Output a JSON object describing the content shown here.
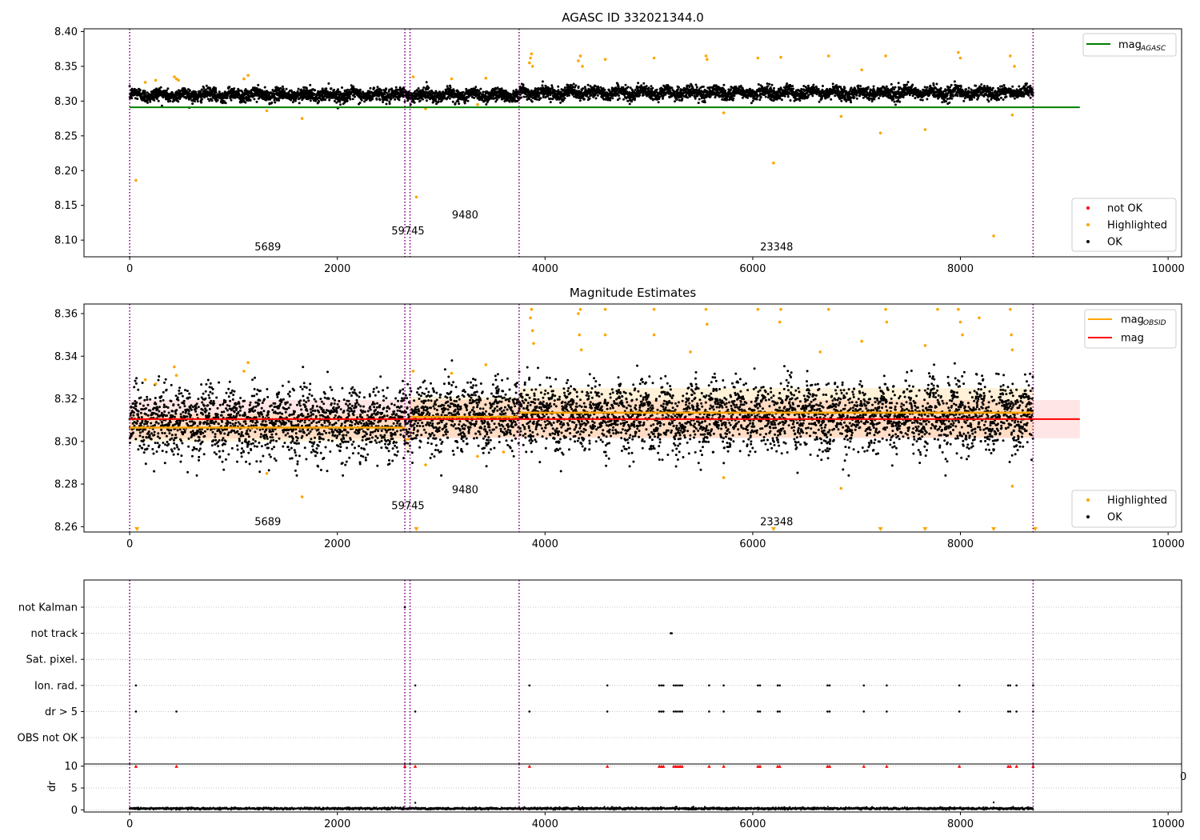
{
  "chart_data": [
    {
      "id": "agasc",
      "type": "scatter",
      "title": "AGASC ID 332021344.0",
      "xlim": [
        -440,
        10130
      ],
      "ylim": [
        8.076,
        8.404
      ],
      "xticks": [
        0,
        2000,
        4000,
        6000,
        8000,
        10000
      ],
      "yticks": [
        8.1,
        8.15,
        8.2,
        8.25,
        8.3,
        8.35,
        8.4
      ],
      "yticks_label": [
        "8.10",
        "8.15",
        "8.20",
        "8.25",
        "8.30",
        "8.35",
        "8.40"
      ],
      "obs_lines": [
        0,
        2650,
        2700,
        3750,
        8700
      ],
      "reference_line": {
        "name": "mag",
        "subscript": "AGASC",
        "y": 8.291,
        "x": [
          0,
          9150
        ],
        "color": "#008000"
      },
      "ok_band": {
        "center": 8.309,
        "amplitude": 0.008,
        "x_segments": [
          [
            0,
            3750
          ],
          [
            3750,
            8700
          ]
        ]
      },
      "highlighted_points": [
        {
          "x": 60,
          "y": 8.186
        },
        {
          "x": 150,
          "y": 8.327
        },
        {
          "x": 250,
          "y": 8.33
        },
        {
          "x": 430,
          "y": 8.335
        },
        {
          "x": 450,
          "y": 8.332
        },
        {
          "x": 470,
          "y": 8.33
        },
        {
          "x": 1100,
          "y": 8.332
        },
        {
          "x": 1140,
          "y": 8.337
        },
        {
          "x": 1320,
          "y": 8.286
        },
        {
          "x": 1660,
          "y": 8.275
        },
        {
          "x": 2730,
          "y": 8.335
        },
        {
          "x": 2760,
          "y": 8.162
        },
        {
          "x": 2850,
          "y": 8.289
        },
        {
          "x": 3100,
          "y": 8.332
        },
        {
          "x": 3350,
          "y": 8.295
        },
        {
          "x": 3430,
          "y": 8.333
        },
        {
          "x": 3850,
          "y": 8.355
        },
        {
          "x": 3860,
          "y": 8.362
        },
        {
          "x": 3870,
          "y": 8.368
        },
        {
          "x": 3880,
          "y": 8.35
        },
        {
          "x": 4320,
          "y": 8.358
        },
        {
          "x": 4340,
          "y": 8.365
        },
        {
          "x": 4360,
          "y": 8.35
        },
        {
          "x": 4580,
          "y": 8.36
        },
        {
          "x": 5050,
          "y": 8.362
        },
        {
          "x": 5550,
          "y": 8.365
        },
        {
          "x": 5560,
          "y": 8.36
        },
        {
          "x": 5720,
          "y": 8.283
        },
        {
          "x": 6050,
          "y": 8.362
        },
        {
          "x": 6200,
          "y": 8.211
        },
        {
          "x": 6270,
          "y": 8.363
        },
        {
          "x": 6730,
          "y": 8.365
        },
        {
          "x": 6850,
          "y": 8.278
        },
        {
          "x": 7050,
          "y": 8.345
        },
        {
          "x": 7230,
          "y": 8.254
        },
        {
          "x": 7280,
          "y": 8.365
        },
        {
          "x": 7660,
          "y": 8.259
        },
        {
          "x": 7980,
          "y": 8.37
        },
        {
          "x": 8000,
          "y": 8.362
        },
        {
          "x": 8320,
          "y": 8.106
        },
        {
          "x": 8480,
          "y": 8.365
        },
        {
          "x": 8500,
          "y": 8.28
        },
        {
          "x": 8520,
          "y": 8.35
        }
      ],
      "annotations": [
        {
          "text": "5689",
          "x": 1330,
          "y": 8.091
        },
        {
          "text": "59745",
          "x": 2680,
          "y": 8.114
        },
        {
          "text": "9480",
          "x": 3230,
          "y": 8.137
        },
        {
          "text": "23348",
          "x": 6230,
          "y": 8.091
        }
      ],
      "legend_lines": [
        {
          "label": "mag",
          "subscript": "AGASC",
          "color": "#008000"
        }
      ],
      "legend_points": [
        {
          "label": "not OK",
          "color": "#ff0000"
        },
        {
          "label": "Highlighted",
          "color": "#ffa500"
        },
        {
          "label": "OK",
          "color": "#000000"
        }
      ]
    },
    {
      "id": "estimates",
      "type": "scatter",
      "title": "Magnitude Estimates",
      "xlim": [
        -440,
        10130
      ],
      "ylim": [
        8.2575,
        8.3645
      ],
      "xticks": [
        0,
        2000,
        4000,
        6000,
        8000,
        10000
      ],
      "yticks": [
        8.26,
        8.28,
        8.3,
        8.32,
        8.34,
        8.36
      ],
      "yticks_label": [
        "8.26",
        "8.28",
        "8.30",
        "8.32",
        "8.34",
        "8.36"
      ],
      "obs_lines": [
        0,
        2650,
        2700,
        3750,
        8700
      ],
      "mag_line": {
        "name": "mag",
        "y": 8.3105,
        "band": [
          8.3015,
          8.3195
        ],
        "x": [
          0,
          9150
        ],
        "color": "#ff0000"
      },
      "obsid_segments": [
        {
          "x": [
            0,
            2650
          ],
          "y": 8.3065,
          "band": [
            8.3,
            8.313
          ]
        },
        {
          "x": [
            2650,
            2700
          ],
          "y": 8.301,
          "band": [
            8.295,
            8.307
          ]
        },
        {
          "x": [
            2700,
            3750
          ],
          "y": 8.3115,
          "band": [
            8.302,
            8.321
          ]
        },
        {
          "x": [
            3750,
            8700
          ],
          "y": 8.3135,
          "band": [
            8.302,
            8.325
          ]
        }
      ],
      "ok_band": {
        "center": 8.309,
        "amplitude": 0.011,
        "x_segments": [
          [
            0,
            2700
          ],
          [
            2700,
            8700
          ]
        ]
      },
      "highlighted_points": [
        {
          "x": 150,
          "y": 8.329
        },
        {
          "x": 250,
          "y": 8.327
        },
        {
          "x": 430,
          "y": 8.335
        },
        {
          "x": 450,
          "y": 8.331
        },
        {
          "x": 1100,
          "y": 8.333
        },
        {
          "x": 1140,
          "y": 8.337
        },
        {
          "x": 1320,
          "y": 8.285
        },
        {
          "x": 1660,
          "y": 8.274
        },
        {
          "x": 2730,
          "y": 8.333
        },
        {
          "x": 2850,
          "y": 8.289
        },
        {
          "x": 3100,
          "y": 8.332
        },
        {
          "x": 3350,
          "y": 8.293
        },
        {
          "x": 3430,
          "y": 8.336
        },
        {
          "x": 3600,
          "y": 8.295
        },
        {
          "x": 3860,
          "y": 8.358
        },
        {
          "x": 3870,
          "y": 8.362
        },
        {
          "x": 3880,
          "y": 8.352
        },
        {
          "x": 3890,
          "y": 8.346
        },
        {
          "x": 4320,
          "y": 8.36
        },
        {
          "x": 4340,
          "y": 8.362
        },
        {
          "x": 4330,
          "y": 8.35
        },
        {
          "x": 4350,
          "y": 8.343
        },
        {
          "x": 4580,
          "y": 8.362
        },
        {
          "x": 4580,
          "y": 8.35
        },
        {
          "x": 5050,
          "y": 8.362
        },
        {
          "x": 5050,
          "y": 8.35
        },
        {
          "x": 5400,
          "y": 8.342
        },
        {
          "x": 5550,
          "y": 8.362
        },
        {
          "x": 5560,
          "y": 8.355
        },
        {
          "x": 5720,
          "y": 8.283
        },
        {
          "x": 6050,
          "y": 8.362
        },
        {
          "x": 6270,
          "y": 8.362
        },
        {
          "x": 6260,
          "y": 8.356
        },
        {
          "x": 6650,
          "y": 8.342
        },
        {
          "x": 6730,
          "y": 8.362
        },
        {
          "x": 6850,
          "y": 8.278
        },
        {
          "x": 7050,
          "y": 8.347
        },
        {
          "x": 7280,
          "y": 8.362
        },
        {
          "x": 7290,
          "y": 8.356
        },
        {
          "x": 7660,
          "y": 8.345
        },
        {
          "x": 7780,
          "y": 8.362
        },
        {
          "x": 7980,
          "y": 8.362
        },
        {
          "x": 8000,
          "y": 8.356
        },
        {
          "x": 8020,
          "y": 8.35
        },
        {
          "x": 8180,
          "y": 8.358
        },
        {
          "x": 8480,
          "y": 8.362
        },
        {
          "x": 8490,
          "y": 8.35
        },
        {
          "x": 8500,
          "y": 8.343
        },
        {
          "x": 8500,
          "y": 8.279
        }
      ],
      "clipped_points_x": [
        70,
        2760,
        6200,
        7230,
        7660,
        8320,
        8720
      ],
      "annotations": [
        {
          "text": "5689",
          "x": 1330,
          "y": 8.2625
        },
        {
          "text": "59745",
          "x": 2680,
          "y": 8.27
        },
        {
          "text": "9480",
          "x": 3230,
          "y": 8.2775
        },
        {
          "text": "23348",
          "x": 6230,
          "y": 8.2625
        }
      ],
      "legend_lines": [
        {
          "label": "mag",
          "subscript": "OBSID",
          "color": "#ffa500"
        },
        {
          "label": "mag",
          "subscript": "",
          "color": "#ff0000"
        }
      ],
      "legend_points": [
        {
          "label": "Highlighted",
          "color": "#ffa500"
        },
        {
          "label": "OK",
          "color": "#000000"
        }
      ]
    },
    {
      "id": "flags",
      "type": "scatter",
      "xlim": [
        -440,
        10130
      ],
      "categories": [
        "not Kalman",
        "not track",
        "Sat. pixel.",
        "Ion. rad.",
        "dr > 5",
        "OBS not OK"
      ],
      "obs_lines": [
        0,
        2650,
        2700,
        3750,
        8700
      ],
      "points": [
        {
          "category": "not Kalman",
          "x": [
            2650
          ]
        },
        {
          "category": "not track",
          "x": [
            5210,
            5220
          ]
        },
        {
          "category": "Sat. pixel.",
          "x": []
        },
        {
          "category": "Ion. rad.",
          "x": [
            60,
            2750,
            3850,
            4600,
            5100,
            5120,
            5140,
            5240,
            5260,
            5280,
            5300,
            5320,
            5580,
            5720,
            6050,
            6070,
            6240,
            6260,
            6720,
            6740,
            7070,
            7290,
            7990,
            8460,
            8480,
            8540,
            8700
          ]
        },
        {
          "category": "dr > 5",
          "x": [
            60,
            450,
            2750,
            3850,
            4600,
            5100,
            5120,
            5140,
            5240,
            5260,
            5280,
            5300,
            5320,
            5580,
            5720,
            6050,
            6070,
            6240,
            6260,
            6720,
            6740,
            7070,
            7290,
            7990,
            8460,
            8480,
            8540,
            8700
          ]
        },
        {
          "category": "OBS not OK",
          "x": []
        }
      ]
    },
    {
      "id": "dr",
      "type": "scatter",
      "ylabel": "dr",
      "xlim": [
        -440,
        10130
      ],
      "ylim": [
        -0.5,
        10.5
      ],
      "xticks": [
        0,
        2000,
        4000,
        6000,
        8000,
        10000
      ],
      "yticks": [
        0,
        5,
        10
      ],
      "yticks_label": [
        "0",
        "5",
        "10"
      ],
      "obs_lines": [
        0,
        2650,
        2700,
        3750,
        8700
      ],
      "capped_points_x": [
        60,
        450,
        2650,
        2750,
        3850,
        4600,
        5100,
        5120,
        5140,
        5240,
        5260,
        5280,
        5300,
        5320,
        5580,
        5720,
        6050,
        6070,
        6240,
        6260,
        6720,
        6740,
        7070,
        7290,
        7990,
        8460,
        8480,
        8540,
        8700
      ],
      "extra_points": [
        {
          "x": 2750,
          "y": 1.6
        },
        {
          "x": 8320,
          "y": 1.7
        }
      ],
      "baseline": {
        "y": 0.3,
        "amplitude": 0.25
      }
    }
  ],
  "clipped_tick_fragment": "0"
}
